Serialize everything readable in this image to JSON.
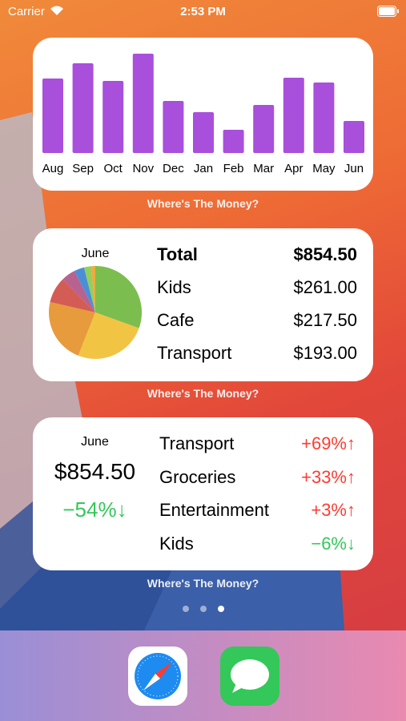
{
  "status": {
    "carrier": "Carrier",
    "time": "2:53 PM"
  },
  "bar_widget": {
    "type": "bar",
    "categories": [
      "Aug",
      "Sep",
      "Oct",
      "Nov",
      "Dec",
      "Jan",
      "Feb",
      "Mar",
      "Apr",
      "May",
      "Jun"
    ],
    "values": [
      93,
      112,
      90,
      124,
      65,
      51,
      29,
      60,
      94,
      88,
      40
    ],
    "color": "#a84fdc",
    "caption": "Where's The Money?"
  },
  "pie_widget": {
    "type": "pie",
    "title": "June",
    "values": [
      30.5,
      25.5,
      22.6,
      9,
      5,
      3.5,
      2.5,
      1.4
    ],
    "colors": [
      "#7cbd4f",
      "#f2c443",
      "#e79b3c",
      "#d35c55",
      "#b8628f",
      "#4b8ed8",
      "#93cf5a",
      "#f0a93d"
    ],
    "rows": [
      {
        "label": "Total",
        "amount": "$854.50"
      },
      {
        "label": "Kids",
        "amount": "$261.00"
      },
      {
        "label": "Cafe",
        "amount": "$217.50"
      },
      {
        "label": "Transport",
        "amount": "$193.00"
      }
    ],
    "caption": "Where's The Money?"
  },
  "change_widget": {
    "month": "June",
    "total": "$854.50",
    "total_change": "−54%↓",
    "total_color": "#34c759",
    "rows": [
      {
        "label": "Transport",
        "change": "+69%↑",
        "color": "#ff3b30"
      },
      {
        "label": "Groceries",
        "change": "+33%↑",
        "color": "#ff3b30"
      },
      {
        "label": "Entertainment",
        "change": "+3%↑",
        "color": "#ff3b30"
      },
      {
        "label": "Kids",
        "change": "−6%↓",
        "color": "#34c759"
      }
    ],
    "caption": "Where's The Money?"
  }
}
